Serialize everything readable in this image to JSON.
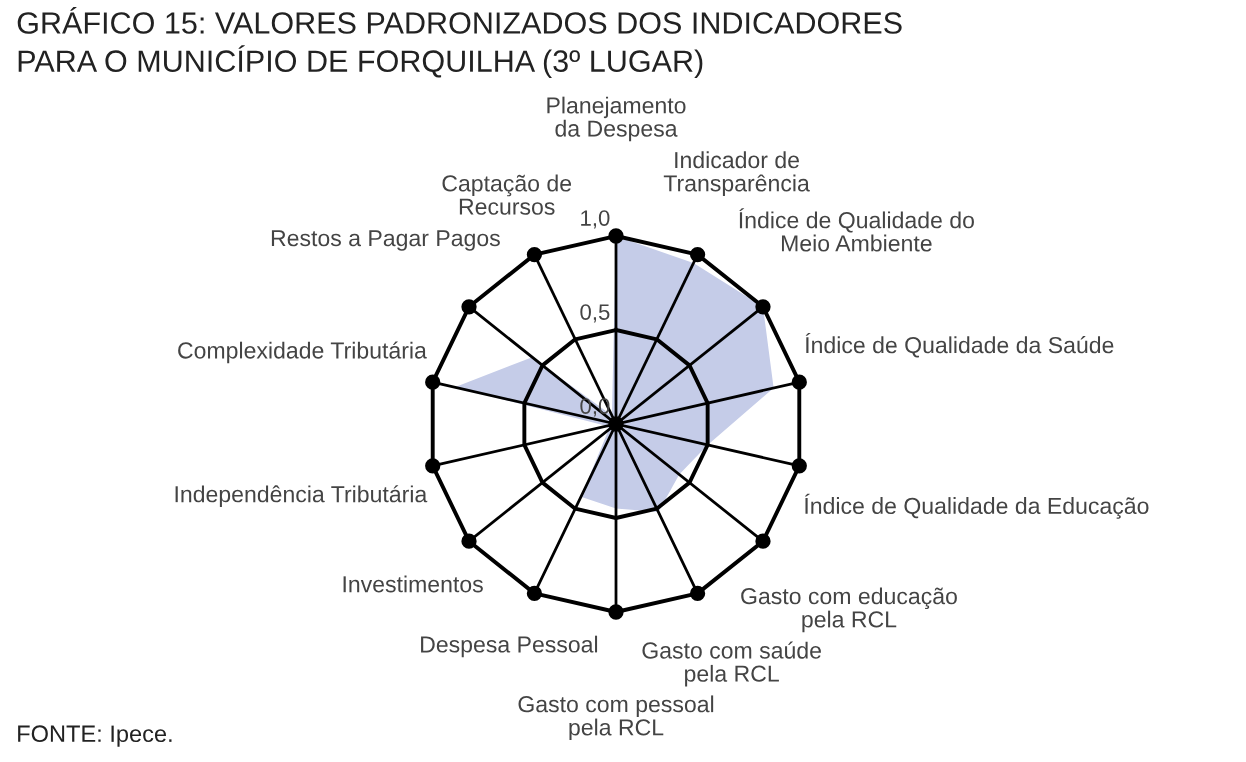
{
  "chart_data": {
    "type": "radar",
    "title": "GRÁFICO 15: VALORES PADRONIZADOS DOS INDICADORES\nPARA O MUNICÍPIO DE FORQUILHA (3º LUGAR)",
    "categories": [
      "Planejamento\nda Despesa",
      "Indicador de\nTransparência",
      "Índice de Qualidade do\nMeio Ambiente",
      "Índice de Qualidade da Saúde",
      "Índice de Qualidade da Educação",
      "Gasto com educação\npela RCL",
      "Gasto com saúde\npela RCL",
      "Gasto com pessoal\npela RCL",
      "Despesa Pessoal",
      "Investimentos",
      "Independência Tributária",
      "Complexidade Tributária",
      "Restos a Pagar Pagos",
      "Captação de\nRecursos"
    ],
    "series": [
      {
        "color": "#c5cce8",
        "values": [
          1.0,
          0.95,
          1.0,
          0.86,
          0.5,
          0.43,
          0.52,
          0.45,
          0.43,
          0.05,
          0.05,
          0.88,
          0.57,
          0.05
        ]
      }
    ],
    "ylim": [
      0,
      1
    ],
    "yticks": [
      {
        "value": 0,
        "label": "0,0"
      },
      {
        "value": 0.5,
        "label": "0,5"
      },
      {
        "value": 1,
        "label": "1,0"
      }
    ],
    "annotations": [
      "FONTE: Ipece."
    ],
    "grid": true,
    "marker": "none",
    "legend": false
  }
}
